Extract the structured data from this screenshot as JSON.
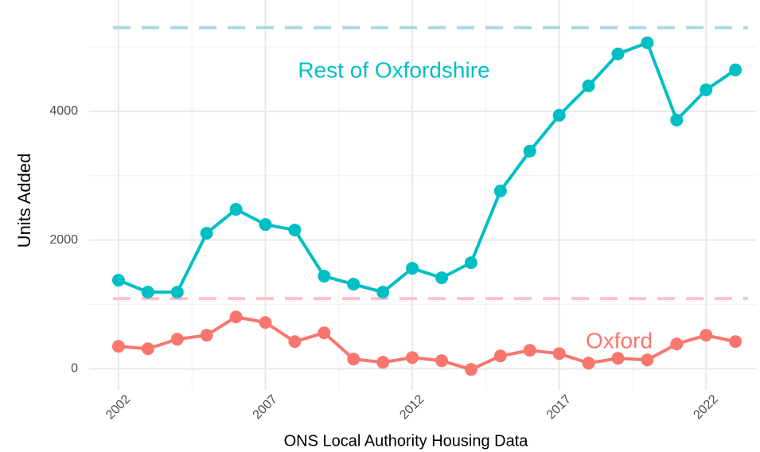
{
  "chart_data": {
    "type": "line",
    "x": [
      2002,
      2003,
      2004,
      2005,
      2006,
      2007,
      2008,
      2009,
      2010,
      2011,
      2012,
      2013,
      2014,
      2015,
      2016,
      2017,
      2018,
      2019,
      2020,
      2021,
      2022,
      2023
    ],
    "series": [
      {
        "name": "Rest of Oxfordshire",
        "color": "#00BFC4",
        "values": [
          1375,
          1190,
          1190,
          2105,
          2477,
          2241,
          2155,
          1437,
          1313,
          1190,
          1560,
          1412,
          1647,
          2762,
          3381,
          3938,
          4396,
          4892,
          5065,
          3864,
          4334,
          4644
        ]
      },
      {
        "name": "Oxford",
        "color": "#F8766D",
        "values": [
          347,
          310,
          458,
          520,
          805,
          718,
          421,
          557,
          149,
          99,
          173,
          124,
          -12,
          198,
          285,
          235,
          87,
          161,
          136,
          384,
          520,
          421
        ]
      }
    ],
    "reference_lines": [
      {
        "value": 5300,
        "color": "#add8e6"
      },
      {
        "value": 1090,
        "color": "#ffc0cb"
      }
    ],
    "xlabel": "ONS Local Authority Housing Data",
    "ylabel": "Units Added",
    "xlim": [
      2001,
      2023.7
    ],
    "xticks": [
      2002,
      2007,
      2012,
      2017,
      2022
    ],
    "ylim": [
      -330,
      5730
    ],
    "yticks": [
      0,
      2000,
      4000
    ],
    "grid": true
  }
}
